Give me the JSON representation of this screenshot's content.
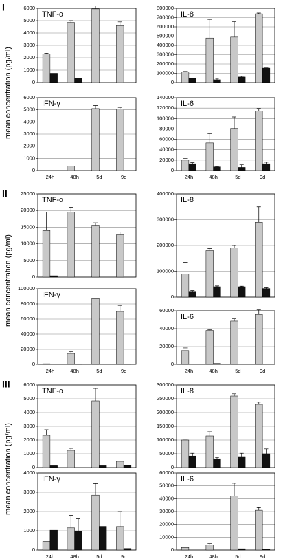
{
  "figure": {
    "sections": [
      "I",
      "II",
      "III"
    ],
    "ylabel": "mean concentration (pg/ml)"
  },
  "chart_data": [
    {
      "type": "bar",
      "title": "TNF-α",
      "categories": [
        null,
        null,
        null,
        null
      ],
      "ylim": [
        0,
        6000
      ],
      "yticks": [
        0,
        1000,
        2000,
        3000,
        4000,
        5000,
        6000
      ],
      "grid": true,
      "series": [
        {
          "color": "#c8c8c8",
          "values": [
            2300,
            4850,
            5950,
            4600
          ],
          "errors": [
            60,
            150,
            250,
            300
          ]
        },
        {
          "color": "#111111",
          "values": [
            750,
            350,
            null,
            null
          ],
          "errors": [
            null,
            null,
            null,
            null
          ]
        }
      ]
    },
    {
      "type": "bar",
      "title": "IL-8",
      "categories": [
        null,
        null,
        null,
        null
      ],
      "ylim": [
        0,
        800000
      ],
      "yticks": [
        0,
        100000,
        200000,
        300000,
        400000,
        500000,
        600000,
        700000,
        800000
      ],
      "grid": true,
      "series": [
        {
          "color": "#c8c8c8",
          "values": [
            115000,
            480000,
            490000,
            740000
          ],
          "errors": [
            5000,
            200000,
            165000,
            8000
          ]
        },
        {
          "color": "#111111",
          "values": [
            45000,
            30000,
            60000,
            155000
          ],
          "errors": [
            3000,
            15000,
            8000,
            3000
          ]
        }
      ]
    },
    {
      "type": "bar",
      "title": "IFN-γ",
      "categories": [
        "24h",
        "48h",
        "5d",
        "9d"
      ],
      "ylim": [
        0,
        6000
      ],
      "yticks": [
        0,
        1000,
        2000,
        3000,
        4000,
        5000,
        6000
      ],
      "grid": true,
      "series": [
        {
          "color": "#c8c8c8",
          "values": [
            null,
            380,
            5100,
            5050
          ],
          "errors": [
            null,
            null,
            250,
            150
          ]
        },
        {
          "color": "#111111",
          "values": [
            null,
            null,
            null,
            null
          ],
          "errors": [
            null,
            null,
            null,
            null
          ]
        }
      ]
    },
    {
      "type": "bar",
      "title": "IL-6",
      "categories": [
        "24h",
        "48h",
        "5d",
        "9d"
      ],
      "ylim": [
        0,
        140000
      ],
      "yticks": [
        0,
        20000,
        40000,
        60000,
        80000,
        100000,
        120000,
        140000
      ],
      "grid": true,
      "series": [
        {
          "color": "#c8c8c8",
          "values": [
            20000,
            53000,
            81000,
            114000
          ],
          "errors": [
            3000,
            18000,
            22000,
            5000
          ]
        },
        {
          "color": "#111111",
          "values": [
            13000,
            7000,
            6000,
            13000
          ],
          "errors": [
            2000,
            1000,
            5000,
            3000
          ]
        }
      ]
    },
    {
      "type": "bar",
      "title": "TNF-α",
      "categories": [
        null,
        null,
        null,
        null
      ],
      "ylim": [
        0,
        25000
      ],
      "yticks": [
        0,
        5000,
        10000,
        15000,
        20000,
        25000
      ],
      "grid": true,
      "series": [
        {
          "color": "#c8c8c8",
          "values": [
            14000,
            19500,
            15600,
            12700
          ],
          "errors": [
            5500,
            1500,
            700,
            800
          ]
        },
        {
          "color": "#111111",
          "values": [
            400,
            null,
            null,
            null
          ],
          "errors": [
            null,
            null,
            null,
            null
          ]
        }
      ]
    },
    {
      "type": "bar",
      "title": "IL-8",
      "categories": [
        null,
        null,
        null,
        null
      ],
      "ylim": [
        0,
        400000
      ],
      "yticks": [
        0,
        100000,
        200000,
        300000,
        400000
      ],
      "grid": true,
      "series": [
        {
          "color": "#c8c8c8",
          "values": [
            90000,
            180000,
            190000,
            290000
          ],
          "errors": [
            45000,
            8000,
            10000,
            60000
          ]
        },
        {
          "color": "#111111",
          "values": [
            22000,
            40000,
            40000,
            33000
          ],
          "errors": [
            3000,
            3000,
            2000,
            3000
          ]
        }
      ]
    },
    {
      "type": "bar",
      "title": "IFN-γ",
      "categories": [
        "24h",
        "48h",
        "5d",
        "9d"
      ],
      "ylim": [
        0,
        100000
      ],
      "yticks": [
        0,
        20000,
        40000,
        60000,
        80000,
        100000
      ],
      "grid": true,
      "series": [
        {
          "color": "#c8c8c8",
          "values": [
            800,
            14500,
            87000,
            70000
          ],
          "errors": [
            null,
            2500,
            null,
            8000
          ]
        },
        {
          "color": "#111111",
          "values": [
            null,
            500,
            null,
            500
          ],
          "errors": [
            null,
            null,
            null,
            null
          ]
        }
      ]
    },
    {
      "type": "bar",
      "title": "IL-6",
      "categories": [
        "24h",
        "48h",
        "5d",
        "9d"
      ],
      "ylim": [
        0,
        60000
      ],
      "yticks": [
        0,
        20000,
        40000,
        60000
      ],
      "grid": true,
      "series": [
        {
          "color": "#c8c8c8",
          "values": [
            15500,
            38000,
            48500,
            56000
          ],
          "errors": [
            3000,
            1000,
            2500,
            5000
          ]
        },
        {
          "color": "#111111",
          "values": [
            null,
            1000,
            null,
            null
          ],
          "errors": [
            null,
            null,
            null,
            null
          ]
        }
      ]
    },
    {
      "type": "bar",
      "title": "TNF-α",
      "categories": [
        null,
        null,
        null,
        null
      ],
      "ylim": [
        0,
        6000
      ],
      "yticks": [
        0,
        1000,
        2000,
        3000,
        4000,
        5000,
        6000
      ],
      "grid": true,
      "series": [
        {
          "color": "#c8c8c8",
          "values": [
            2350,
            1250,
            4850,
            450
          ],
          "errors": [
            400,
            150,
            900,
            null
          ]
        },
        {
          "color": "#111111",
          "values": [
            130,
            null,
            130,
            150
          ],
          "errors": [
            null,
            null,
            null,
            null
          ]
        }
      ]
    },
    {
      "type": "bar",
      "title": "IL-8",
      "categories": [
        null,
        null,
        null,
        null
      ],
      "ylim": [
        0,
        300000
      ],
      "yticks": [
        0,
        50000,
        100000,
        150000,
        200000,
        250000,
        300000
      ],
      "grid": true,
      "series": [
        {
          "color": "#c8c8c8",
          "values": [
            100000,
            115000,
            260000,
            230000
          ],
          "errors": [
            3000,
            15000,
            8000,
            8000
          ]
        },
        {
          "color": "#111111",
          "values": [
            42000,
            32000,
            40000,
            50000
          ],
          "errors": [
            10000,
            5000,
            12000,
            18000
          ]
        }
      ]
    },
    {
      "type": "bar",
      "title": "IFN-γ",
      "categories": [
        "24h",
        "48h",
        "5d",
        "9d"
      ],
      "ylim": [
        0,
        4000
      ],
      "yticks": [
        0,
        1000,
        2000,
        3000,
        4000
      ],
      "grid": true,
      "series": [
        {
          "color": "#c8c8c8",
          "values": [
            450,
            1150,
            2850,
            1220
          ],
          "errors": [
            null,
            650,
            600,
            780
          ]
        },
        {
          "color": "#111111",
          "values": [
            1030,
            970,
            1230,
            80
          ],
          "errors": [
            null,
            650,
            null,
            null
          ]
        }
      ]
    },
    {
      "type": "bar",
      "title": "IL-6",
      "categories": [
        "24h",
        "48h",
        "5d",
        "9d"
      ],
      "ylim": [
        0,
        60000
      ],
      "yticks": [
        0,
        10000,
        20000,
        30000,
        40000,
        50000,
        60000
      ],
      "grid": true,
      "series": [
        {
          "color": "#c8c8c8",
          "values": [
            2000,
            4000,
            42000,
            31000
          ],
          "errors": [
            500,
            1000,
            10000,
            2000
          ]
        },
        {
          "color": "#111111",
          "values": [
            null,
            null,
            1000,
            500
          ],
          "errors": [
            null,
            null,
            null,
            null
          ]
        }
      ]
    }
  ]
}
